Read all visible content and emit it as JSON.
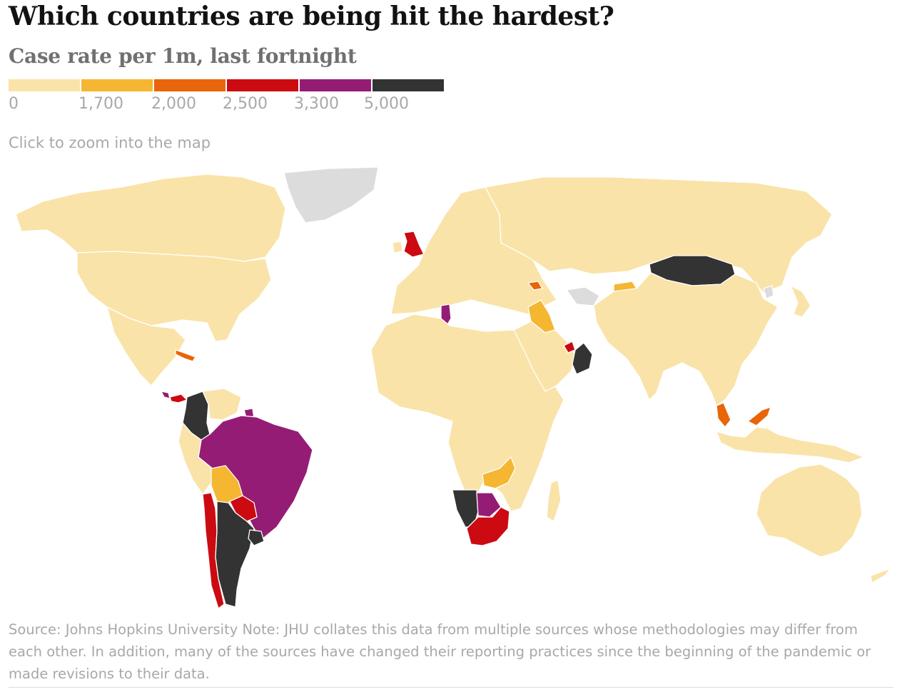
{
  "header": {
    "title": "Which countries are being hit the hardest?",
    "subtitle": "Case rate per 1m, last fortnight"
  },
  "legend": {
    "colors": [
      "#fae3a8",
      "#f5b731",
      "#e8650a",
      "#cc0a11",
      "#951c75",
      "#333333"
    ],
    "labels": [
      "0",
      "1,700",
      "2,000",
      "2,500",
      "3,300",
      "5,000"
    ]
  },
  "hint": "Click to zoom into the map",
  "source": "Source: Johns Hopkins University Note: JHU collates this data from multiple sources whose methodologies may differ from each other. In addition, many of the sources have changed their reporting practices since the beginning of the pandemic or made revisions to their data.",
  "map": {
    "no_data_color": "#dcdcdc",
    "countries": [
      {
        "name": "Canada",
        "bin": 0
      },
      {
        "name": "United States",
        "bin": 0
      },
      {
        "name": "Mexico",
        "bin": 0
      },
      {
        "name": "Cuba",
        "bin": 2
      },
      {
        "name": "Costa Rica",
        "bin": 4
      },
      {
        "name": "Panama",
        "bin": 3
      },
      {
        "name": "Colombia",
        "bin": 5
      },
      {
        "name": "Venezuela",
        "bin": 0
      },
      {
        "name": "Suriname",
        "bin": 4
      },
      {
        "name": "Brazil",
        "bin": 4
      },
      {
        "name": "Peru",
        "bin": 0
      },
      {
        "name": "Bolivia",
        "bin": 1
      },
      {
        "name": "Paraguay",
        "bin": 3
      },
      {
        "name": "Chile",
        "bin": 3
      },
      {
        "name": "Argentina",
        "bin": 5
      },
      {
        "name": "Uruguay",
        "bin": 5
      },
      {
        "name": "Greenland",
        "bin": -1
      },
      {
        "name": "United Kingdom",
        "bin": 3
      },
      {
        "name": "Ireland",
        "bin": 0
      },
      {
        "name": "Europe",
        "bin": 0
      },
      {
        "name": "Russia",
        "bin": 0
      },
      {
        "name": "Tunisia",
        "bin": 4
      },
      {
        "name": "Africa",
        "bin": 0
      },
      {
        "name": "Madagascar",
        "bin": 0
      },
      {
        "name": "Zambia",
        "bin": 1
      },
      {
        "name": "Namibia",
        "bin": 5
      },
      {
        "name": "Botswana",
        "bin": 4
      },
      {
        "name": "South Africa",
        "bin": 3
      },
      {
        "name": "Georgia",
        "bin": 2
      },
      {
        "name": "Turkmenistan",
        "bin": -1
      },
      {
        "name": "Kyrgyzstan",
        "bin": 1
      },
      {
        "name": "Iraq",
        "bin": 1
      },
      {
        "name": "Arabian Peninsula",
        "bin": 0
      },
      {
        "name": "UAE",
        "bin": 3
      },
      {
        "name": "Oman",
        "bin": 5
      },
      {
        "name": "Mongolia",
        "bin": 5
      },
      {
        "name": "North Korea",
        "bin": -1
      },
      {
        "name": "Asia",
        "bin": 0
      },
      {
        "name": "Japan",
        "bin": 0
      },
      {
        "name": "Malaysia",
        "bin": 2
      },
      {
        "name": "Indonesia",
        "bin": 0
      },
      {
        "name": "Australia",
        "bin": 0
      },
      {
        "name": "New Zealand",
        "bin": 0
      }
    ]
  }
}
